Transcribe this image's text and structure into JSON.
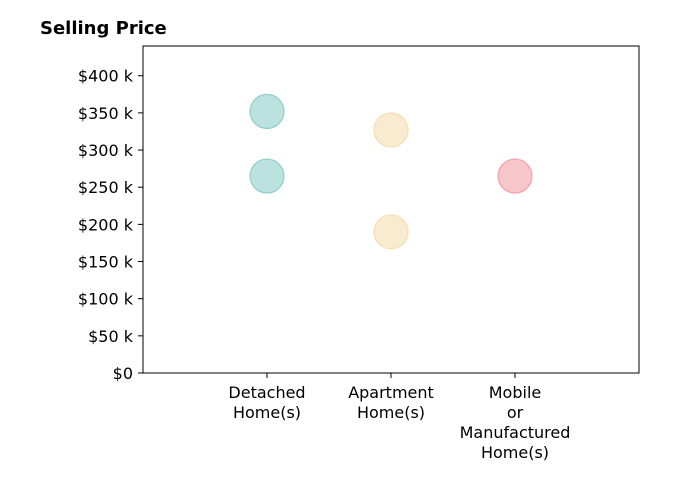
{
  "chart_data": {
    "type": "scatter",
    "title": "Selling Price",
    "xlabel": "",
    "ylabel": "",
    "categories": [
      [
        "Detached",
        "Home(s)"
      ],
      [
        "Apartment",
        "Home(s)"
      ],
      [
        "Mobile",
        "or",
        "Manufactured",
        "Home(s)"
      ]
    ],
    "xlim": [
      -0.5,
      3.5
    ],
    "ylim": [
      0,
      440000
    ],
    "yticks": [
      0,
      50000,
      100000,
      150000,
      200000,
      250000,
      300000,
      350000,
      400000
    ],
    "ytick_labels": [
      "$0",
      "$50 k",
      "$100 k",
      "$150 k",
      "$200 k",
      "$250 k",
      "$300 k",
      "$350 k",
      "$400 k"
    ],
    "grid": false,
    "legend": "none",
    "series": [
      {
        "category_index": 0,
        "values": [
          265000,
          352000
        ],
        "color": "#8ecfc9"
      },
      {
        "category_index": 1,
        "values": [
          190000,
          327000
        ],
        "color": "#f5deb0"
      },
      {
        "category_index": 2,
        "values": [
          265000
        ],
        "color": "#f2a0a6"
      }
    ],
    "marker_opacity": 0.6
  }
}
